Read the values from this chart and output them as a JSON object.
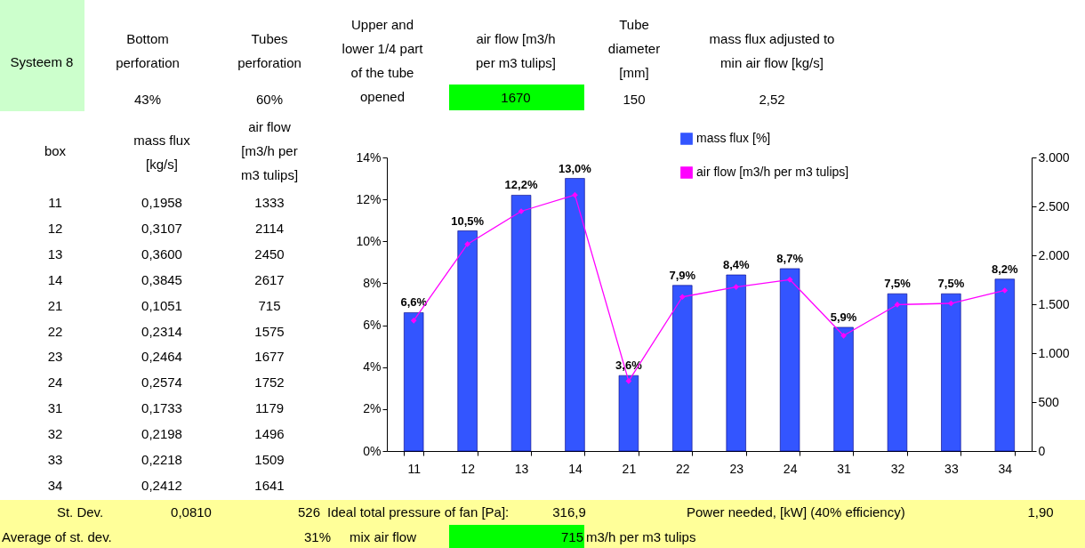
{
  "chart_data": {
    "type": "bar",
    "annotations": [
      "Systeem 8",
      "Bottom perforation",
      "43%",
      "Tubes perforation",
      "60%",
      "Upper and lower 1/4 part of the tube opened",
      "air flow [m3/h per m3 tulips]",
      "1670",
      "Tube diameter [mm]",
      "150",
      "mass flux adjusted to min air flow [kg/s]",
      "2,52",
      "box",
      "mass flux [kg/s]",
      "air flow [m3/h per m3 tulips]",
      "11",
      "0,1958",
      "1333",
      "12",
      "0,3107",
      "2114",
      "13",
      "0,3600",
      "2450",
      "14",
      "0,3845",
      "2617",
      "21",
      "0,1051",
      "715",
      "22",
      "0,2314",
      "1575",
      "23",
      "0,2464",
      "1677",
      "24",
      "0,2574",
      "1752",
      "31",
      "0,1733",
      "1179",
      "32",
      "0,2198",
      "1496",
      "33",
      "0,2218",
      "1509",
      "34",
      "0,2412",
      "1641",
      "St. Dev.",
      "0,0810",
      "526",
      "Ideal total pressure of fan [Pa]:",
      "316,9",
      "Power needed, [kW] (40% efficiency)",
      "1,90",
      "Average of st. dev.",
      "31%",
      "mix air flow",
      "715",
      "m3/h per m3 tulips"
    ],
    "categories": [
      "11",
      "12",
      "13",
      "14",
      "21",
      "22",
      "23",
      "24",
      "31",
      "32",
      "33",
      "34"
    ],
    "series": [
      {
        "name": "mass flux [%]",
        "color": "#3355ff",
        "values": [
          6.6,
          10.5,
          12.2,
          13.0,
          3.6,
          7.9,
          8.4,
          8.7,
          5.9,
          7.5,
          7.5,
          8.2
        ],
        "value_labels": [
          "6,6%",
          "10,5%",
          "12,2%",
          "13,0%",
          "3,6%",
          "7,9%",
          "8,4%",
          "8,7%",
          "5,9%",
          "7,5%",
          "7,5%",
          "8,2%"
        ]
      },
      {
        "name": "air flow [m3/h per m3 tulips]",
        "type": "line",
        "axis": "y2",
        "color": "#ff00ff",
        "marker": "diamond",
        "values": [
          1333,
          2114,
          2450,
          2617,
          715,
          1575,
          1677,
          1752,
          1179,
          1496,
          1509,
          1641
        ]
      }
    ],
    "ylim": [
      0,
      14
    ],
    "yticks": [
      {
        "value": 0,
        "label": "0%"
      },
      {
        "value": 2,
        "label": "2%"
      },
      {
        "value": 4,
        "label": "4%"
      },
      {
        "value": 6,
        "label": "6%"
      },
      {
        "value": 8,
        "label": "8%"
      },
      {
        "value": 10,
        "label": "10%"
      },
      {
        "value": 12,
        "label": "12%"
      },
      {
        "value": 14,
        "label": "14%"
      }
    ],
    "y2lim": [
      0,
      3000
    ],
    "y2ticks": [
      0,
      500,
      {
        "value": 1000,
        "label": "1.000"
      },
      {
        "value": 1500,
        "label": "1.500"
      },
      {
        "value": 2000,
        "label": "2.000"
      },
      {
        "value": 2500,
        "label": "2.500"
      },
      {
        "value": 3000,
        "label": "3.000"
      }
    ],
    "legend": "top right"
  }
}
